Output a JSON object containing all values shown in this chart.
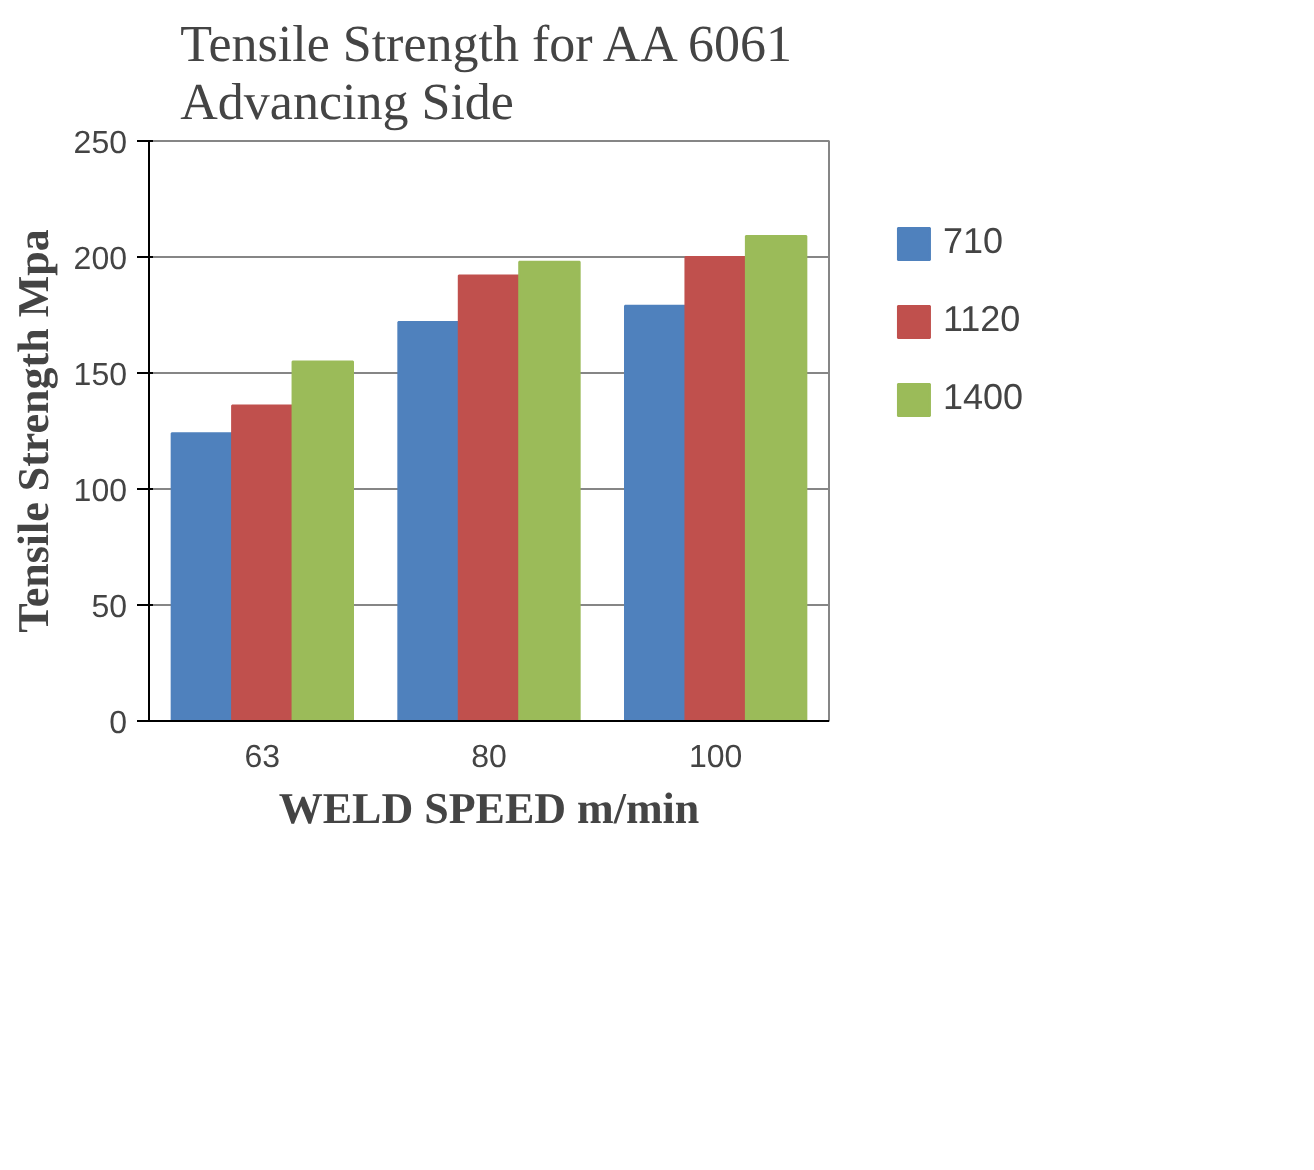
{
  "chart_data": {
    "type": "bar",
    "title": "Tensile Strength for AA 6061\nAdvancing Side",
    "xlabel": "WELD SPEED m/min",
    "ylabel": "Tensile Strength Mpa",
    "categories": [
      "63",
      "80",
      "100"
    ],
    "series": [
      {
        "name": "710",
        "color": "#4f81bd",
        "values": [
          124,
          172,
          179
        ]
      },
      {
        "name": "1120",
        "color": "#c0504d",
        "values": [
          136,
          192,
          200
        ]
      },
      {
        "name": "1400",
        "color": "#9bbb59",
        "values": [
          155,
          198,
          209
        ]
      }
    ],
    "ylim": [
      0,
      250
    ],
    "yticks": [
      0,
      50,
      100,
      150,
      200,
      250
    ],
    "grid": "y",
    "legend": "right"
  }
}
